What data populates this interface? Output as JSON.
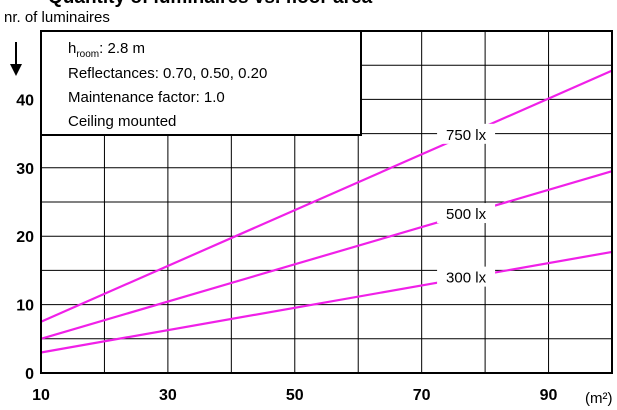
{
  "chart_data": {
    "type": "line",
    "title": "Quantity of luminaires vs. floor area",
    "ylabel": "nr. of luminaires",
    "xlabel_unit": "(m²)",
    "xlim": [
      10,
      100
    ],
    "ylim": [
      0,
      50
    ],
    "x_ticks": [
      10,
      30,
      50,
      70,
      90
    ],
    "y_ticks": [
      0,
      10,
      20,
      30,
      40
    ],
    "grid": true,
    "info_box": {
      "room_height_prefix": "h",
      "room_height_sub": "room",
      "room_height_value": ": 2.8 m",
      "reflectances": "Reflectances:  0.70, 0.50, 0.20",
      "maintenance_factor": "Maintenance factor:  1.0",
      "mounting": "Ceiling mounted"
    },
    "series": [
      {
        "name": "750 lx",
        "color": "#f020e8",
        "x": [
          10,
          100
        ],
        "y": [
          7.5,
          44.2
        ],
        "label_x": 77
      },
      {
        "name": "500 lx",
        "color": "#f020e8",
        "x": [
          10,
          100
        ],
        "y": [
          5.0,
          29.5
        ],
        "label_x": 77
      },
      {
        "name": "300 lx",
        "color": "#f020e8",
        "x": [
          10,
          100
        ],
        "y": [
          3.0,
          17.7
        ],
        "label_x": 77
      }
    ]
  }
}
